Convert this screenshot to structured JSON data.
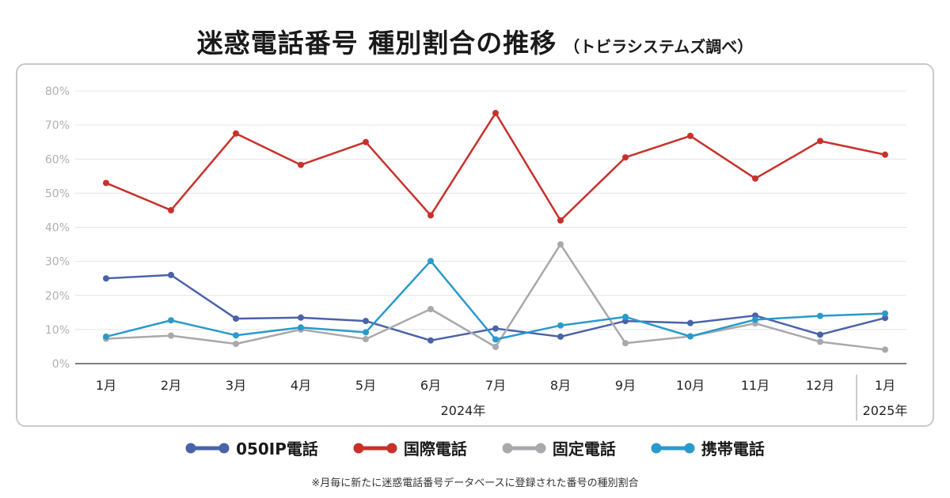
{
  "header": {
    "title": "迷惑電話番号 種別割合の推移",
    "subtitle": "（トビラシステムズ調べ）"
  },
  "footnote": "※月毎に新たに迷惑電話番号データベースに登録された番号の種別割合",
  "chart_data": {
    "type": "line",
    "categories": [
      "1月",
      "2月",
      "3月",
      "4月",
      "5月",
      "6月",
      "7月",
      "8月",
      "9月",
      "10月",
      "11月",
      "12月",
      "1月"
    ],
    "year_labels": [
      {
        "label": "2024年",
        "from": 0,
        "to": 11
      },
      {
        "label": "2025年",
        "from": 12,
        "to": 12
      }
    ],
    "ylim": [
      0,
      80
    ],
    "yticks": [
      0,
      10,
      20,
      30,
      40,
      50,
      60,
      70,
      80
    ],
    "ytick_labels": [
      "0%",
      "10%",
      "20%",
      "30%",
      "40%",
      "50%",
      "60%",
      "70%",
      "80%"
    ],
    "grid": true,
    "legend_position": "bottom",
    "series": [
      {
        "name": "050IP電話",
        "color": "#4a62a8",
        "values": [
          25.0,
          26.0,
          13.2,
          13.5,
          12.5,
          6.8,
          10.3,
          7.9,
          12.5,
          11.9,
          14.1,
          8.5,
          13.4
        ]
      },
      {
        "name": "国際電話",
        "color": "#c8312b",
        "values": [
          53.0,
          45.0,
          67.5,
          58.3,
          65.0,
          43.5,
          73.5,
          42.0,
          60.5,
          66.8,
          54.3,
          65.3,
          61.3
        ]
      },
      {
        "name": "固定電話",
        "color": "#a9a9ad",
        "values": [
          7.3,
          8.2,
          5.8,
          10.0,
          7.2,
          16.0,
          4.9,
          35.0,
          6.0,
          8.0,
          11.8,
          6.4,
          4.1
        ]
      },
      {
        "name": "携帯電話",
        "color": "#2a9acb",
        "values": [
          7.9,
          12.7,
          8.3,
          10.6,
          9.2,
          30.1,
          7.1,
          11.2,
          13.7,
          8.0,
          12.9,
          14.0,
          14.7
        ]
      }
    ]
  }
}
